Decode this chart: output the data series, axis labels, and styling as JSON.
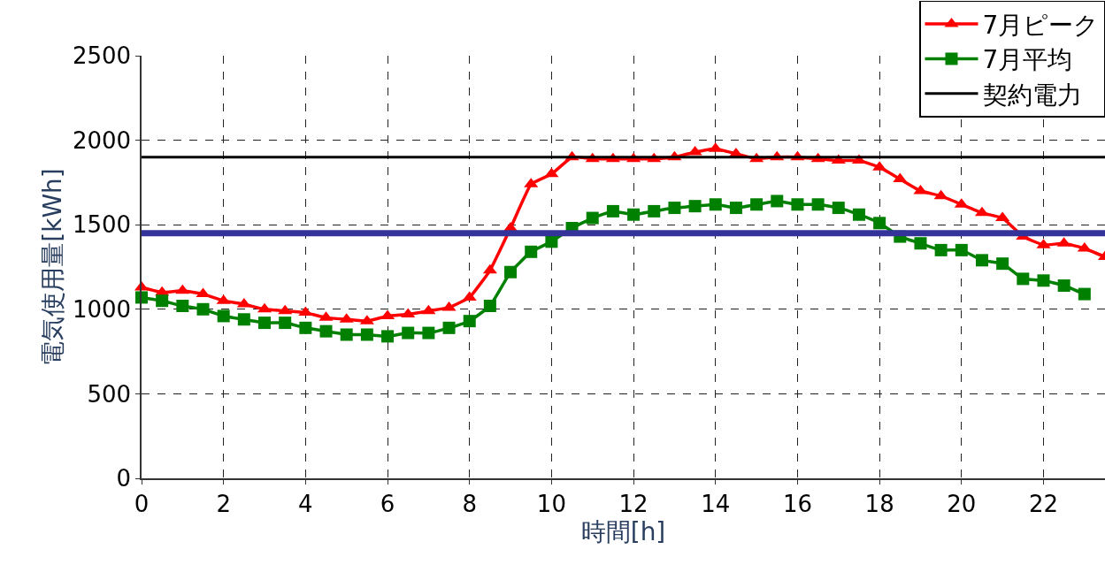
{
  "chart_data": {
    "type": "line",
    "xlabel": "時間[h]",
    "ylabel": "電気使用量[kWh]",
    "x": [
      0,
      0.5,
      1,
      1.5,
      2,
      2.5,
      3,
      3.5,
      4,
      4.5,
      5,
      5.5,
      6,
      6.5,
      7,
      7.5,
      8,
      8.5,
      9,
      9.5,
      10,
      10.5,
      11,
      11.5,
      12,
      12.5,
      13,
      13.5,
      14,
      14.5,
      15,
      15.5,
      16,
      16.5,
      17,
      17.5,
      18,
      18.5,
      19,
      19.5,
      20,
      20.5,
      21,
      21.5,
      22,
      22.5,
      23,
      23.5
    ],
    "series": [
      {
        "name": "7月ピーク",
        "color": "#ff0000",
        "marker": "triangle",
        "values": [
          1130,
          1100,
          1110,
          1090,
          1050,
          1030,
          1000,
          990,
          980,
          950,
          940,
          930,
          960,
          970,
          990,
          1010,
          1070,
          1230,
          1480,
          1740,
          1800,
          1900,
          1890,
          1890,
          1890,
          1890,
          1900,
          1930,
          1950,
          1920,
          1890,
          1900,
          1900,
          1890,
          1880,
          1880,
          1840,
          1770,
          1700,
          1670,
          1620,
          1570,
          1540,
          1430,
          1380,
          1390,
          1360,
          1310
        ]
      },
      {
        "name": "7月平均",
        "color": "#008000",
        "marker": "square",
        "values": [
          1070,
          1050,
          1020,
          1000,
          960,
          940,
          920,
          920,
          890,
          870,
          850,
          850,
          840,
          860,
          860,
          890,
          930,
          1020,
          1220,
          1340,
          1400,
          1480,
          1540,
          1580,
          1560,
          1580,
          1600,
          1610,
          1620,
          1600,
          1620,
          1640,
          1620,
          1620,
          1600,
          1560,
          1510,
          1430,
          1390,
          1350,
          1350,
          1290,
          1270,
          1180,
          1170,
          1140,
          1090,
          null
        ]
      },
      {
        "name": "契約電力",
        "color": "#000000",
        "marker": "none",
        "x": [
          0,
          23.5
        ],
        "values": [
          1900,
          1900
        ]
      }
    ],
    "ref_lines": [
      {
        "axis": "y",
        "value": 1450,
        "color": "#333399"
      }
    ],
    "xlim": [
      0,
      23.5
    ],
    "xticks": [
      0,
      2,
      4,
      6,
      8,
      10,
      12,
      14,
      16,
      18,
      20,
      22
    ],
    "ylim": [
      0,
      2500
    ],
    "yticks": [
      0,
      500,
      1000,
      1500,
      2000,
      2500
    ],
    "grid": true,
    "legend": "top right"
  }
}
